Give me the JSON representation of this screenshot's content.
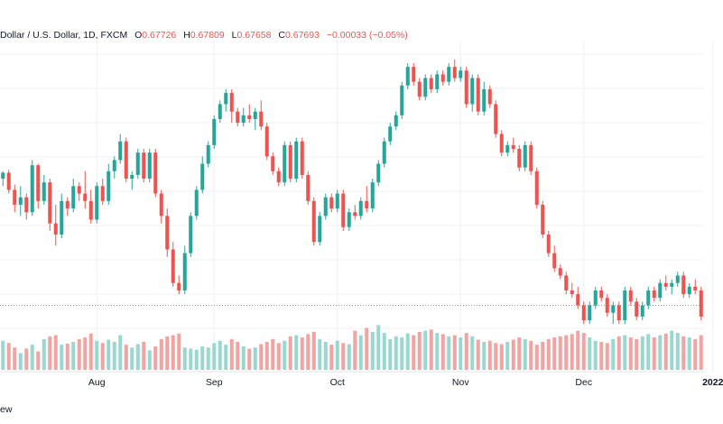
{
  "legend": {
    "symbol": "Dollar / U.S. Dollar, 1D, FXCM",
    "open_label": "O",
    "open": "0.67726",
    "high_label": "H",
    "high": "0.67809",
    "low_label": "L",
    "low": "0.67658",
    "close_label": "C",
    "close": "0.67693",
    "change": "−0.00033 (−0.05%)"
  },
  "footer": {
    "text": "ew"
  },
  "colors": {
    "up": "#26a69a",
    "down": "#ef5350",
    "up_volume": "#9ad7cf",
    "down_volume": "#f2a4a3",
    "grid": "#eef0f3",
    "last_price_line": "#9598a1"
  },
  "chart_data": {
    "type": "candlestick",
    "title": "",
    "grid": true,
    "x_axis_labels": [
      {
        "text": "Aug",
        "index": 16,
        "bold": false
      },
      {
        "text": "Sep",
        "index": 36,
        "bold": false
      },
      {
        "text": "Oct",
        "index": 57,
        "bold": false
      },
      {
        "text": "Nov",
        "index": 78,
        "bold": false
      },
      {
        "text": "Dec",
        "index": 99,
        "bold": false
      },
      {
        "text": "2022",
        "index": 121,
        "bold": true
      }
    ],
    "ohlc_scale": "relative",
    "candles": [
      [
        0.74,
        0.75,
        0.73,
        0.748
      ],
      [
        0.748,
        0.752,
        0.72,
        0.725
      ],
      [
        0.725,
        0.732,
        0.695,
        0.705
      ],
      [
        0.705,
        0.73,
        0.69,
        0.715
      ],
      [
        0.715,
        0.72,
        0.685,
        0.695
      ],
      [
        0.695,
        0.765,
        0.69,
        0.758
      ],
      [
        0.758,
        0.76,
        0.7,
        0.71
      ],
      [
        0.71,
        0.745,
        0.705,
        0.735
      ],
      [
        0.735,
        0.74,
        0.67,
        0.68
      ],
      [
        0.68,
        0.705,
        0.65,
        0.665
      ],
      [
        0.665,
        0.72,
        0.66,
        0.71
      ],
      [
        0.71,
        0.715,
        0.69,
        0.7
      ],
      [
        0.7,
        0.74,
        0.695,
        0.73
      ],
      [
        0.73,
        0.735,
        0.71,
        0.72
      ],
      [
        0.72,
        0.75,
        0.7,
        0.71
      ],
      [
        0.71,
        0.725,
        0.68,
        0.685
      ],
      [
        0.685,
        0.735,
        0.68,
        0.73
      ],
      [
        0.73,
        0.74,
        0.705,
        0.71
      ],
      [
        0.71,
        0.76,
        0.705,
        0.75
      ],
      [
        0.75,
        0.77,
        0.74,
        0.765
      ],
      [
        0.765,
        0.8,
        0.76,
        0.79
      ],
      [
        0.79,
        0.795,
        0.735,
        0.74
      ],
      [
        0.74,
        0.75,
        0.725,
        0.745
      ],
      [
        0.745,
        0.78,
        0.74,
        0.775
      ],
      [
        0.775,
        0.78,
        0.735,
        0.74
      ],
      [
        0.74,
        0.78,
        0.735,
        0.775
      ],
      [
        0.775,
        0.78,
        0.715,
        0.72
      ],
      [
        0.72,
        0.725,
        0.68,
        0.69
      ],
      [
        0.69,
        0.7,
        0.635,
        0.645
      ],
      [
        0.645,
        0.655,
        0.595,
        0.6
      ],
      [
        0.6,
        0.61,
        0.585,
        0.59
      ],
      [
        0.59,
        0.65,
        0.585,
        0.64
      ],
      [
        0.64,
        0.695,
        0.635,
        0.69
      ],
      [
        0.69,
        0.73,
        0.685,
        0.725
      ],
      [
        0.725,
        0.77,
        0.72,
        0.76
      ],
      [
        0.76,
        0.79,
        0.755,
        0.785
      ],
      [
        0.785,
        0.825,
        0.78,
        0.82
      ],
      [
        0.82,
        0.845,
        0.815,
        0.84
      ],
      [
        0.84,
        0.86,
        0.83,
        0.855
      ],
      [
        0.855,
        0.86,
        0.815,
        0.83
      ],
      [
        0.83,
        0.835,
        0.81,
        0.815
      ],
      [
        0.815,
        0.835,
        0.81,
        0.825
      ],
      [
        0.825,
        0.84,
        0.815,
        0.82
      ],
      [
        0.82,
        0.835,
        0.805,
        0.83
      ],
      [
        0.83,
        0.845,
        0.805,
        0.81
      ],
      [
        0.81,
        0.815,
        0.765,
        0.77
      ],
      [
        0.77,
        0.775,
        0.745,
        0.75
      ],
      [
        0.75,
        0.755,
        0.73,
        0.735
      ],
      [
        0.735,
        0.79,
        0.73,
        0.785
      ],
      [
        0.785,
        0.79,
        0.735,
        0.74
      ],
      [
        0.74,
        0.795,
        0.735,
        0.79
      ],
      [
        0.79,
        0.795,
        0.74,
        0.745
      ],
      [
        0.745,
        0.75,
        0.705,
        0.71
      ],
      [
        0.71,
        0.715,
        0.65,
        0.655
      ],
      [
        0.655,
        0.695,
        0.65,
        0.69
      ],
      [
        0.69,
        0.72,
        0.685,
        0.715
      ],
      [
        0.715,
        0.72,
        0.695,
        0.7
      ],
      [
        0.7,
        0.725,
        0.695,
        0.72
      ],
      [
        0.72,
        0.725,
        0.67,
        0.675
      ],
      [
        0.675,
        0.7,
        0.67,
        0.695
      ],
      [
        0.695,
        0.705,
        0.685,
        0.69
      ],
      [
        0.69,
        0.715,
        0.685,
        0.71
      ],
      [
        0.71,
        0.73,
        0.695,
        0.7
      ],
      [
        0.7,
        0.74,
        0.695,
        0.735
      ],
      [
        0.735,
        0.765,
        0.73,
        0.76
      ],
      [
        0.76,
        0.795,
        0.755,
        0.79
      ],
      [
        0.79,
        0.815,
        0.785,
        0.81
      ],
      [
        0.81,
        0.83,
        0.805,
        0.825
      ],
      [
        0.825,
        0.87,
        0.82,
        0.865
      ],
      [
        0.865,
        0.895,
        0.86,
        0.89
      ],
      [
        0.89,
        0.895,
        0.865,
        0.87
      ],
      [
        0.87,
        0.875,
        0.845,
        0.85
      ],
      [
        0.85,
        0.88,
        0.845,
        0.875
      ],
      [
        0.875,
        0.88,
        0.855,
        0.86
      ],
      [
        0.86,
        0.885,
        0.855,
        0.88
      ],
      [
        0.88,
        0.885,
        0.865,
        0.87
      ],
      [
        0.87,
        0.895,
        0.865,
        0.89
      ],
      [
        0.89,
        0.9,
        0.87,
        0.875
      ],
      [
        0.875,
        0.89,
        0.87,
        0.885
      ],
      [
        0.885,
        0.89,
        0.835,
        0.84
      ],
      [
        0.84,
        0.88,
        0.83,
        0.875
      ],
      [
        0.875,
        0.88,
        0.825,
        0.83
      ],
      [
        0.83,
        0.87,
        0.825,
        0.86
      ],
      [
        0.86,
        0.865,
        0.835,
        0.84
      ],
      [
        0.84,
        0.845,
        0.795,
        0.8
      ],
      [
        0.8,
        0.805,
        0.77,
        0.775
      ],
      [
        0.775,
        0.79,
        0.77,
        0.785
      ],
      [
        0.785,
        0.795,
        0.775,
        0.78
      ],
      [
        0.78,
        0.785,
        0.75,
        0.755
      ],
      [
        0.755,
        0.79,
        0.75,
        0.785
      ],
      [
        0.785,
        0.79,
        0.745,
        0.75
      ],
      [
        0.75,
        0.755,
        0.7,
        0.705
      ],
      [
        0.705,
        0.71,
        0.66,
        0.665
      ],
      [
        0.665,
        0.67,
        0.635,
        0.64
      ],
      [
        0.64,
        0.65,
        0.615,
        0.62
      ],
      [
        0.62,
        0.625,
        0.605,
        0.61
      ],
      [
        0.61,
        0.615,
        0.585,
        0.59
      ],
      [
        0.59,
        0.6,
        0.58,
        0.585
      ],
      [
        0.585,
        0.595,
        0.565,
        0.57
      ],
      [
        0.57,
        0.575,
        0.545,
        0.55
      ],
      [
        0.55,
        0.575,
        0.545,
        0.57
      ],
      [
        0.57,
        0.595,
        0.565,
        0.59
      ],
      [
        0.59,
        0.595,
        0.575,
        0.58
      ],
      [
        0.58,
        0.585,
        0.555,
        0.56
      ],
      [
        0.56,
        0.575,
        0.545,
        0.57
      ],
      [
        0.57,
        0.575,
        0.545,
        0.55
      ],
      [
        0.55,
        0.595,
        0.545,
        0.59
      ],
      [
        0.59,
        0.595,
        0.57,
        0.575
      ],
      [
        0.575,
        0.58,
        0.55,
        0.555
      ],
      [
        0.555,
        0.575,
        0.55,
        0.57
      ],
      [
        0.57,
        0.595,
        0.565,
        0.59
      ],
      [
        0.59,
        0.595,
        0.575,
        0.58
      ],
      [
        0.58,
        0.605,
        0.575,
        0.6
      ],
      [
        0.6,
        0.61,
        0.59,
        0.595
      ],
      [
        0.595,
        0.605,
        0.585,
        0.6
      ],
      [
        0.6,
        0.615,
        0.595,
        0.61
      ],
      [
        0.61,
        0.615,
        0.58,
        0.585
      ],
      [
        0.585,
        0.6,
        0.58,
        0.595
      ],
      [
        0.595,
        0.605,
        0.585,
        0.59
      ],
      [
        0.59,
        0.595,
        0.55,
        0.555
      ]
    ],
    "volumes": [
      0.52,
      0.48,
      0.4,
      0.3,
      0.38,
      0.45,
      0.33,
      0.55,
      0.6,
      0.62,
      0.45,
      0.47,
      0.5,
      0.55,
      0.58,
      0.65,
      0.52,
      0.48,
      0.54,
      0.5,
      0.62,
      0.45,
      0.4,
      0.46,
      0.5,
      0.35,
      0.42,
      0.55,
      0.6,
      0.62,
      0.65,
      0.4,
      0.38,
      0.36,
      0.42,
      0.4,
      0.48,
      0.52,
      0.45,
      0.55,
      0.5,
      0.42,
      0.38,
      0.4,
      0.46,
      0.5,
      0.55,
      0.48,
      0.52,
      0.6,
      0.62,
      0.58,
      0.64,
      0.68,
      0.55,
      0.5,
      0.45,
      0.52,
      0.48,
      0.46,
      0.7,
      0.62,
      0.75,
      0.68,
      0.8,
      0.66,
      0.55,
      0.6,
      0.58,
      0.65,
      0.62,
      0.68,
      0.7,
      0.72,
      0.66,
      0.64,
      0.6,
      0.62,
      0.58,
      0.66,
      0.6,
      0.54,
      0.5,
      0.52,
      0.48,
      0.46,
      0.5,
      0.54,
      0.58,
      0.55,
      0.52,
      0.45,
      0.5,
      0.55,
      0.58,
      0.6,
      0.62,
      0.64,
      0.7,
      0.66,
      0.58,
      0.52,
      0.5,
      0.48,
      0.55,
      0.6,
      0.62,
      0.58,
      0.55,
      0.6,
      0.64,
      0.58,
      0.62,
      0.65,
      0.7,
      0.66,
      0.6,
      0.58,
      0.55,
      0.62
    ],
    "last_price_level": 0.57
  }
}
